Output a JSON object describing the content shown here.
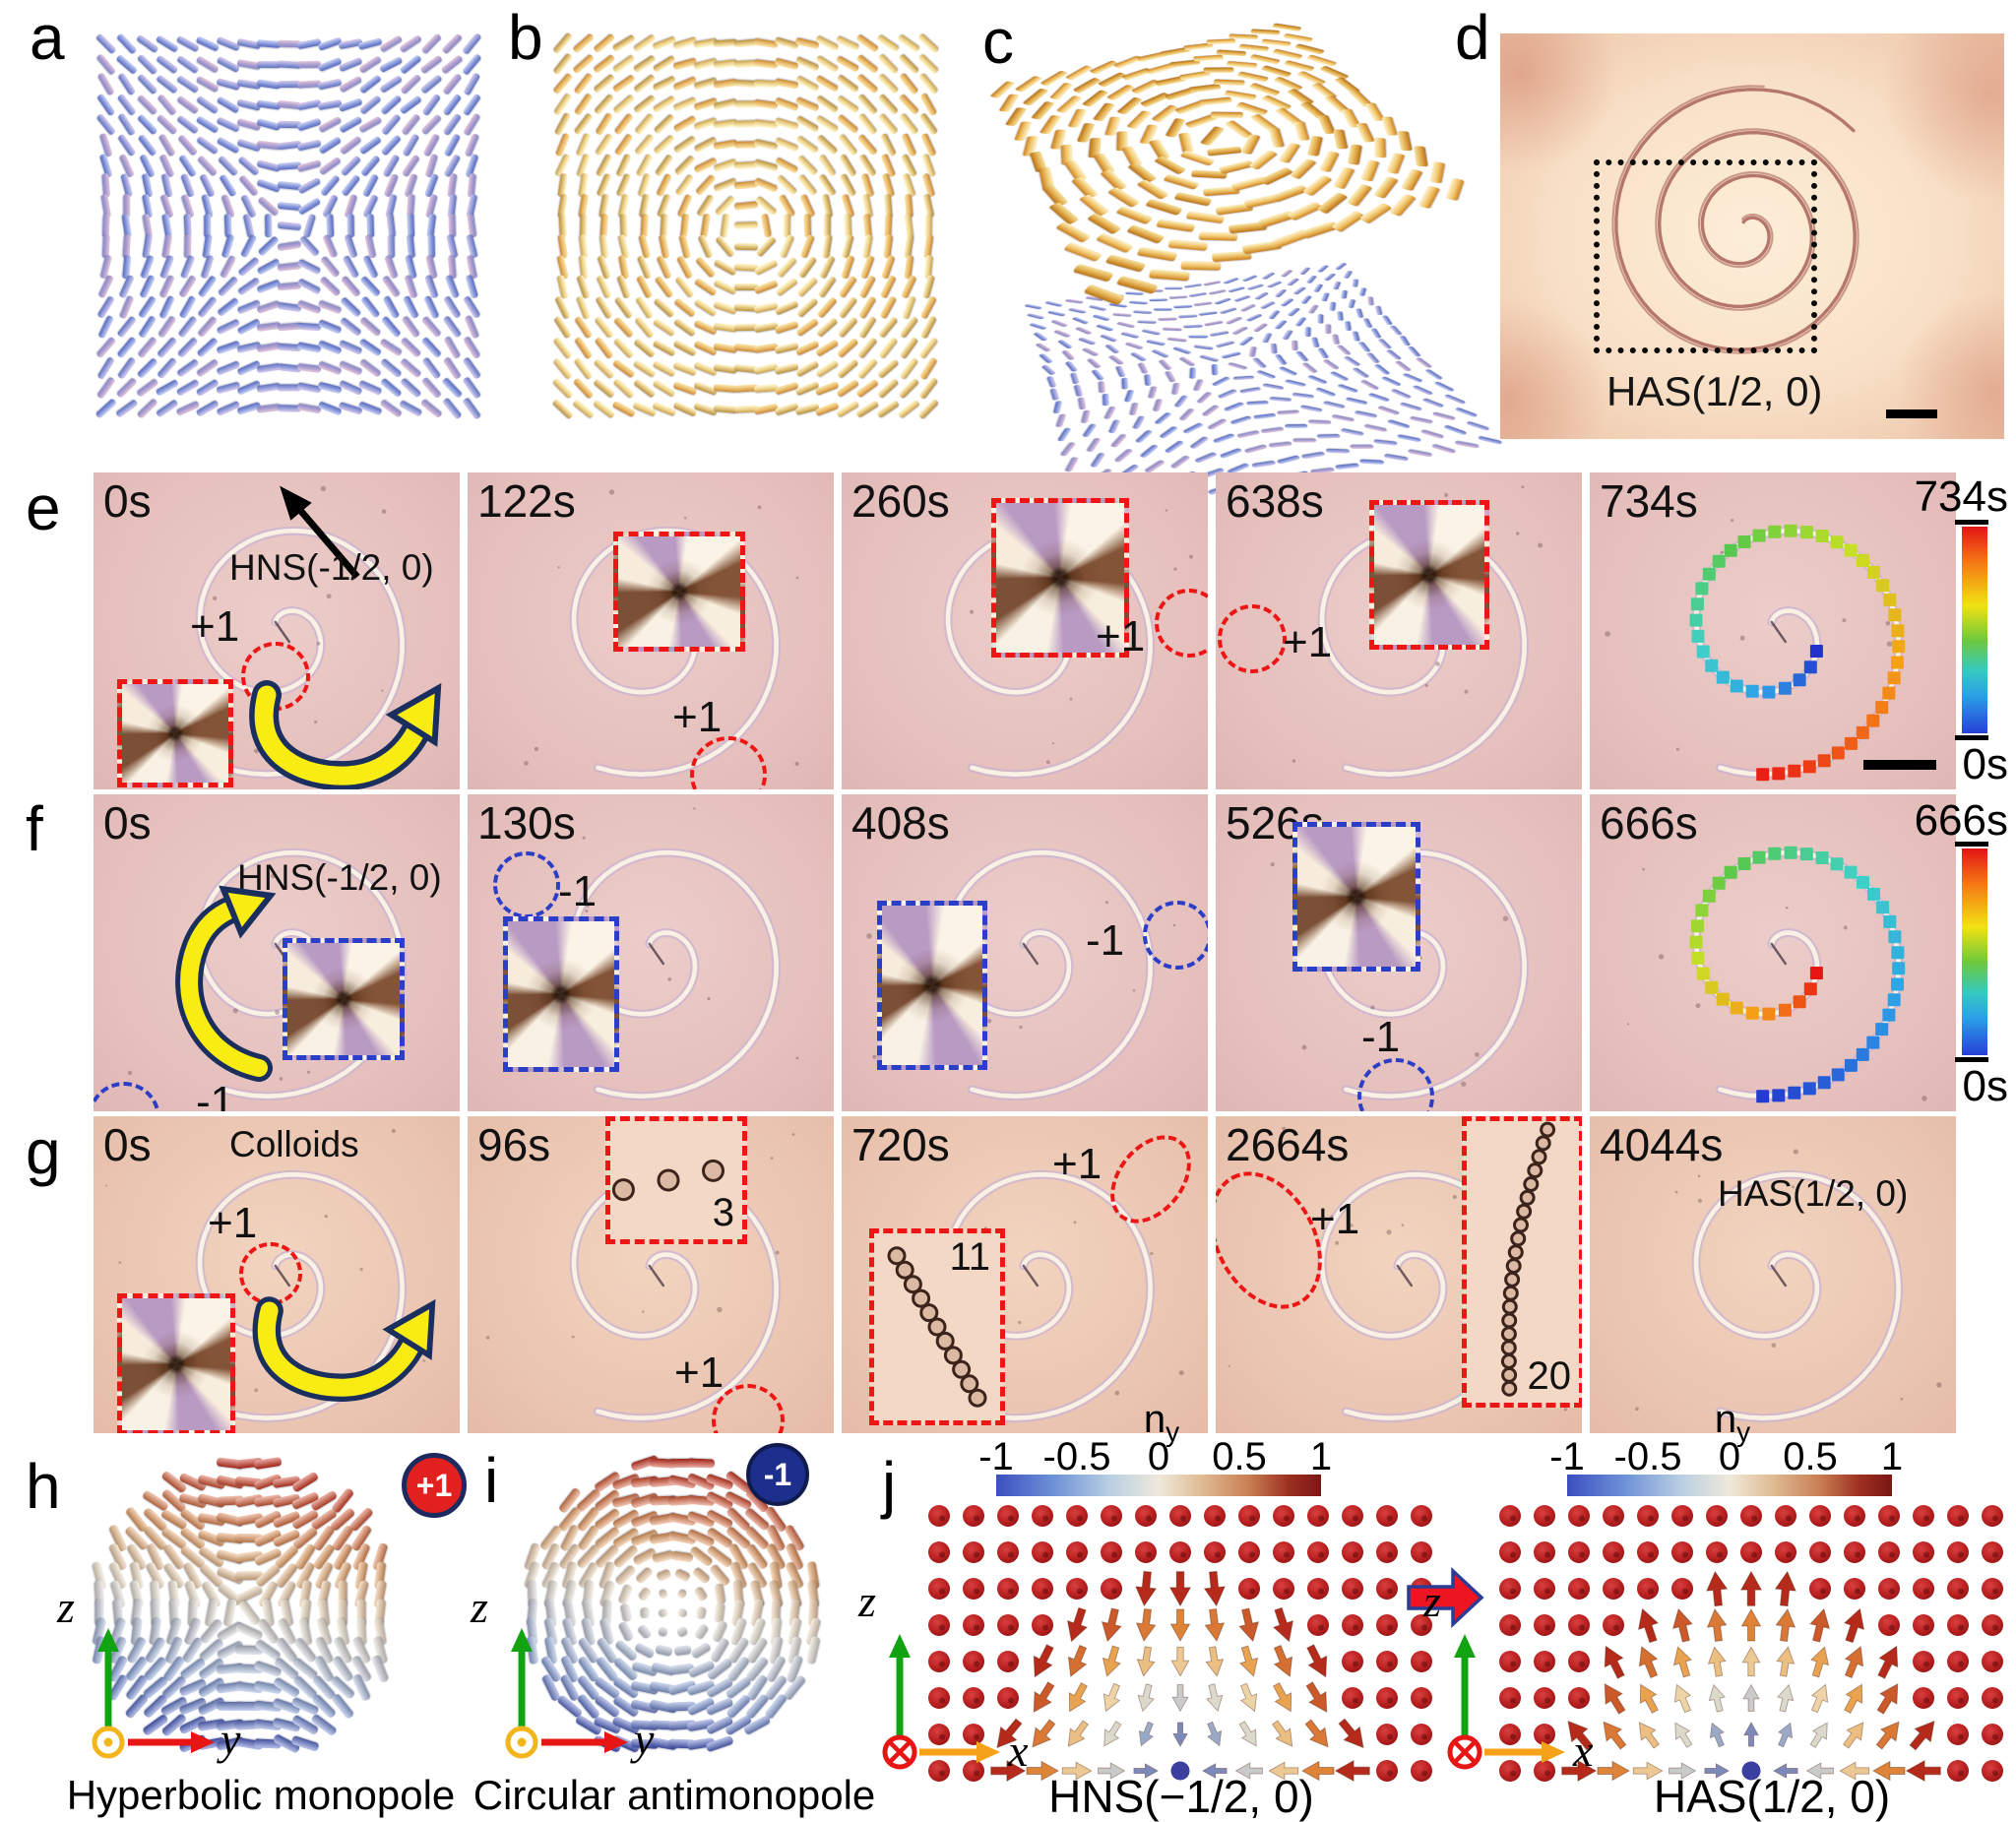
{
  "colors": {
    "annotation_red": "#ee1515",
    "annotation_blue": "#2b3ec8",
    "arrow_yellow": "#f8ec12",
    "badge_red": "#e32020",
    "badge_navy": "#1c2f8c",
    "micrograph_pink": "#e5bfbc"
  },
  "panels": {
    "a": {
      "letter": "a"
    },
    "b": {
      "letter": "b"
    },
    "c": {
      "letter": "c"
    },
    "d": {
      "letter": "d",
      "caption": "HAS(1/2, 0)"
    },
    "e": {
      "letter": "e",
      "colorbar": {
        "top": "734s",
        "bottom": "0s"
      },
      "frames": [
        {
          "time": "0s",
          "structure_label": "HNS(-1/2, 0)",
          "charge": "+1"
        },
        {
          "time": "122s",
          "charge": "+1"
        },
        {
          "time": "260s",
          "charge": "+1"
        },
        {
          "time": "638s",
          "charge": "+1"
        },
        {
          "time": "734s"
        }
      ]
    },
    "f": {
      "letter": "f",
      "colorbar": {
        "top": "666s",
        "bottom": "0s"
      },
      "frames": [
        {
          "time": "0s",
          "structure_label": "HNS(-1/2, 0)",
          "charge": "-1"
        },
        {
          "time": "130s",
          "charge": "-1"
        },
        {
          "time": "408s",
          "charge": "-1"
        },
        {
          "time": "526s",
          "charge": "-1"
        },
        {
          "time": "666s"
        }
      ]
    },
    "g": {
      "letter": "g",
      "frames": [
        {
          "time": "0s",
          "structure_label": "Colloids",
          "charge": "+1"
        },
        {
          "time": "96s",
          "charge": "+1",
          "count": "3"
        },
        {
          "time": "720s",
          "charge": "+1",
          "count": "11"
        },
        {
          "time": "2664s",
          "charge": "+1",
          "count": "20"
        },
        {
          "time": "4044s",
          "structure_label": "HAS(1/2, 0)"
        }
      ]
    },
    "h": {
      "letter": "h",
      "badge": "+1",
      "caption": "Hyperbolic monopole",
      "axis_v": "z",
      "axis_h": "y"
    },
    "i": {
      "letter": "i",
      "badge": "-1",
      "caption": "Circular antimonopole",
      "axis_v": "z",
      "axis_h": "y"
    },
    "j": {
      "letter": "j",
      "axis_v": "z",
      "axis_h": "x",
      "colorbar": {
        "title": "n",
        "title_sub": "y",
        "ticks": [
          "-1",
          "-0.5",
          "0",
          "0.5",
          "1"
        ]
      },
      "left": {
        "caption": "HNS(−1/2, 0)"
      },
      "right": {
        "caption": "HAS(1/2, 0)"
      }
    }
  }
}
